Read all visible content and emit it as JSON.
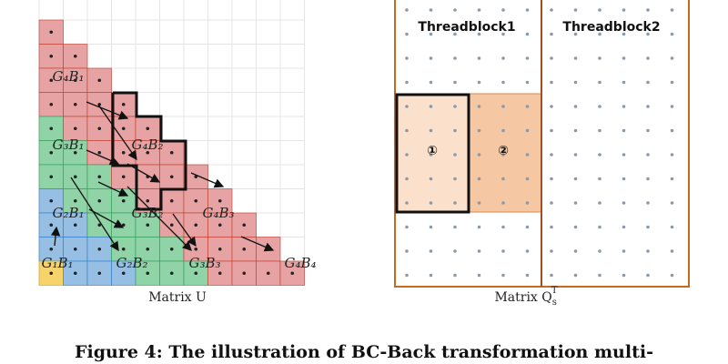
{
  "left": {
    "blocks": [
      "G₄B₁",
      "G₃B₁",
      "G₄B₂",
      "G₂B₁",
      "G₃B₂",
      "G₄B₃",
      "G₁B₁",
      "G₂B₂",
      "G₃B₃",
      "G₄B₄"
    ],
    "caption": "Matrix U"
  },
  "right": {
    "threadblocks": [
      "Threadblock1",
      "Threadblock2"
    ],
    "tiles": [
      "①",
      "②"
    ],
    "caption": {
      "label": "Matrix Q",
      "sub": "s",
      "sup": "T"
    }
  },
  "figure_caption": "Figure 4: The illustration of BC-Back transformation multi-"
}
